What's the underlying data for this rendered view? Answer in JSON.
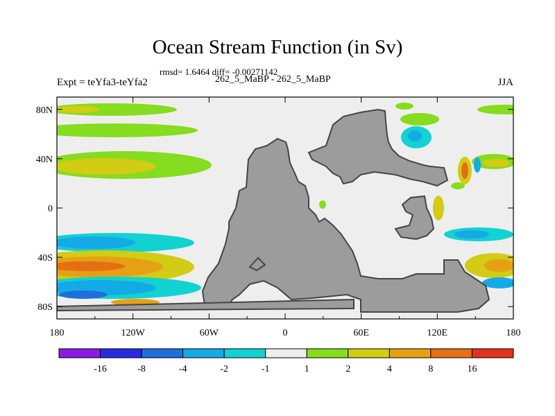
{
  "chart_data": {
    "type": "heatmap",
    "title": "Ocean Stream Function (in Sv)",
    "subtitle": "rmsd= 1.6464 diff= -0.00271142",
    "run_label": "262_5_MaBP - 262_5_MaBP",
    "left_label": "Expt = teYfa3-teYfa2",
    "right_label": "JJA",
    "x_ticks": [
      "180",
      "120W",
      "60W",
      "0",
      "60E",
      "120E",
      "180"
    ],
    "y_ticks": [
      "80N",
      "40N",
      "0",
      "40S",
      "80S"
    ],
    "xlim": [
      -180,
      180
    ],
    "ylim": [
      -90,
      90
    ],
    "colorbar": {
      "labels": [
        "-16",
        "-8",
        "-4",
        "-2",
        "-1",
        "1",
        "2",
        "4",
        "8",
        "16"
      ],
      "colors": [
        "#8a1ae6",
        "#2a2ae0",
        "#1e6edc",
        "#14aae6",
        "#12d2d2",
        "#eeeeee",
        "#86dc1e",
        "#d2cc14",
        "#e6a014",
        "#e66e14",
        "#e0321e"
      ]
    },
    "land_color": "#9c9c9c",
    "land_outline_color": "#444444"
  }
}
